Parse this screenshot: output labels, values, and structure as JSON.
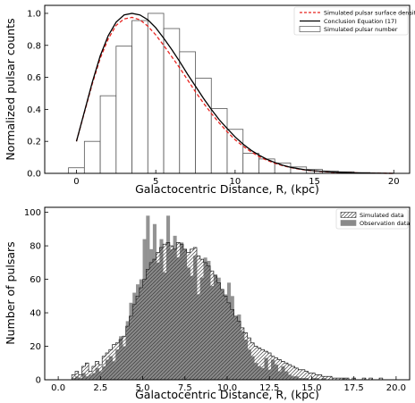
{
  "chart_data": [
    {
      "type": "bar",
      "title": "",
      "xlabel": "Galactocentric Distance, R, (kpc)",
      "ylabel": "Normalized pulsar counts",
      "xlim": [
        -2,
        21
      ],
      "ylim": [
        0,
        1.05
      ],
      "xticks": [
        0,
        5,
        10,
        15,
        20
      ],
      "yticks": [
        0.0,
        0.2,
        0.4,
        0.6,
        0.8,
        1.0
      ],
      "xtick_labels": [
        "0",
        "5",
        "10",
        "15",
        "20"
      ],
      "ytick_labels": [
        "0.0",
        "0.2",
        "0.4",
        "0.6",
        "0.8",
        "1.0"
      ],
      "grid": false,
      "legend_position": "top-right",
      "histogram": {
        "name": "Simulated pulsar number",
        "edges": [
          -0.5,
          0.5,
          1.5,
          2.5,
          3.5,
          4.5,
          5.5,
          6.5,
          7.5,
          8.5,
          9.5,
          10.5,
          11.5,
          12.5,
          13.5,
          14.5,
          15.5,
          16.5,
          17.5,
          18.5,
          19.5
        ],
        "values": [
          0.035,
          0.2,
          0.485,
          0.795,
          0.955,
          1.0,
          0.905,
          0.76,
          0.595,
          0.405,
          0.275,
          0.125,
          0.09,
          0.065,
          0.04,
          0.025,
          0.015,
          0.01,
          0.005,
          0.0
        ],
        "color": "#555555"
      },
      "series": [
        {
          "name": "Simulated pulsar surface density",
          "color": "#e8231f",
          "style": "dashed",
          "x": [
            0,
            0.5,
            1,
            1.5,
            2,
            2.5,
            3,
            3.5,
            4,
            4.5,
            5,
            5.5,
            6,
            6.5,
            7,
            7.5,
            8,
            8.5,
            9,
            9.5,
            10,
            10.5,
            11,
            11.5,
            12,
            12.5,
            13,
            13.5,
            14,
            14.5,
            15,
            16,
            17,
            18,
            19,
            20
          ],
          "y": [
            0.2,
            0.38,
            0.56,
            0.72,
            0.84,
            0.925,
            0.965,
            0.975,
            0.96,
            0.92,
            0.865,
            0.8,
            0.73,
            0.66,
            0.585,
            0.51,
            0.44,
            0.375,
            0.315,
            0.26,
            0.21,
            0.17,
            0.135,
            0.105,
            0.082,
            0.063,
            0.048,
            0.036,
            0.027,
            0.02,
            0.015,
            0.008,
            0.004,
            0.002,
            0.001,
            0.0
          ]
        },
        {
          "name": "Conclusion Equation (17)",
          "color": "#000000",
          "style": "solid",
          "x": [
            0,
            0.5,
            1,
            1.5,
            2,
            2.5,
            3,
            3.5,
            4,
            4.5,
            5,
            5.5,
            6,
            6.5,
            7,
            7.5,
            8,
            8.5,
            9,
            9.5,
            10,
            10.5,
            11,
            11.5,
            12,
            12.5,
            13,
            13.5,
            14,
            14.5,
            15,
            16,
            17,
            18,
            19,
            20
          ],
          "y": [
            0.2,
            0.385,
            0.57,
            0.735,
            0.86,
            0.945,
            0.99,
            1.0,
            0.99,
            0.96,
            0.91,
            0.845,
            0.775,
            0.7,
            0.62,
            0.545,
            0.47,
            0.4,
            0.335,
            0.28,
            0.228,
            0.183,
            0.145,
            0.114,
            0.088,
            0.068,
            0.051,
            0.038,
            0.029,
            0.021,
            0.016,
            0.009,
            0.005,
            0.002,
            0.001,
            0.0
          ]
        }
      ],
      "legend": [
        {
          "label": "Simulated pulsar surface density",
          "kind": "dashed-line",
          "color": "#e8231f"
        },
        {
          "label": "Conclusion Equation (17)",
          "kind": "solid-line",
          "color": "#000000"
        },
        {
          "label": "Simulated pulsar number",
          "kind": "box",
          "color": "#555555"
        }
      ]
    },
    {
      "type": "bar",
      "title": "",
      "xlabel": "Galactocentric Distance, R, (kpc)",
      "ylabel": "Number of pulsars",
      "xlim": [
        -0.8,
        20.8
      ],
      "ylim": [
        0,
        103
      ],
      "xticks": [
        0.0,
        2.5,
        5.0,
        7.5,
        10.0,
        12.5,
        15.0,
        17.5,
        20.0
      ],
      "yticks": [
        0,
        20,
        40,
        60,
        80,
        100
      ],
      "xtick_labels": [
        "0.0",
        "2.5",
        "5.0",
        "7.5",
        "10.0",
        "12.5",
        "15.0",
        "17.5",
        "20.0"
      ],
      "ytick_labels": [
        "0",
        "20",
        "40",
        "60",
        "80",
        "100"
      ],
      "grid": false,
      "legend_position": "top-right",
      "bin_start": 0.8,
      "bin_width": 0.2,
      "series": [
        {
          "name": "Simulated data",
          "pattern": "hatched",
          "values": [
            3,
            5,
            3,
            8,
            10,
            5,
            8,
            11,
            9,
            14,
            16,
            18,
            21,
            22,
            24,
            26,
            32,
            38,
            45,
            50,
            55,
            60,
            66,
            70,
            72,
            76,
            79,
            81,
            82,
            80,
            78,
            82,
            81,
            78,
            76,
            78,
            79,
            74,
            72,
            70,
            68,
            65,
            62,
            58,
            54,
            50,
            46,
            42,
            38,
            35,
            31,
            28,
            25,
            22,
            20,
            19,
            18,
            17,
            16,
            14,
            13,
            12,
            11,
            10,
            9,
            8,
            7,
            6,
            6,
            5,
            4,
            4,
            3,
            3,
            2,
            2,
            2,
            1,
            1,
            1,
            1,
            1,
            0,
            1,
            0,
            0,
            1,
            0,
            1,
            0,
            0,
            1,
            0
          ]
        },
        {
          "name": "Observation data",
          "pattern": "filled",
          "color": "#8a8a8a",
          "values": [
            1,
            2,
            1,
            4,
            2,
            3,
            4,
            7,
            5,
            8,
            12,
            14,
            11,
            18,
            26,
            20,
            35,
            46,
            52,
            57,
            60,
            84,
            98,
            78,
            93,
            70,
            84,
            64,
            98,
            78,
            86,
            73,
            82,
            78,
            67,
            62,
            74,
            51,
            61,
            73,
            71,
            56,
            63,
            61,
            54,
            51,
            58,
            50,
            38,
            39,
            29,
            24,
            18,
            14,
            10,
            8,
            7,
            13,
            6,
            12,
            9,
            5,
            8,
            5,
            3,
            2,
            2,
            1,
            1,
            1,
            0,
            1,
            1,
            0,
            1,
            0,
            0,
            0,
            0,
            0,
            1,
            0,
            0,
            0,
            0,
            0,
            0,
            0,
            0,
            0,
            0,
            0,
            0
          ]
        }
      ],
      "legend": [
        {
          "label": "Simulated data",
          "kind": "hatched"
        },
        {
          "label": "Observation data",
          "kind": "filled"
        }
      ]
    }
  ]
}
